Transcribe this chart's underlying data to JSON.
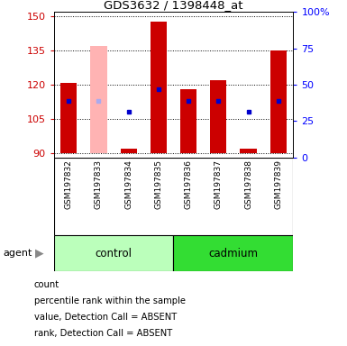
{
  "title": "GDS3632 / 1398448_at",
  "samples": [
    "GSM197832",
    "GSM197833",
    "GSM197834",
    "GSM197835",
    "GSM197836",
    "GSM197837",
    "GSM197838",
    "GSM197839"
  ],
  "bar_bottom": 90,
  "ylim": [
    88,
    152
  ],
  "ylim_right": [
    0,
    100
  ],
  "yticks_left": [
    90,
    105,
    120,
    135,
    150
  ],
  "yticks_right": [
    0,
    25,
    50,
    75,
    100
  ],
  "red_top": [
    121,
    90,
    92,
    148,
    118,
    122,
    92,
    135
  ],
  "blue_dot_y": [
    113,
    113,
    108,
    118,
    113,
    113,
    108,
    113
  ],
  "absent_samples": [
    1
  ],
  "absent_bar_top": [
    137
  ],
  "absent_blue_dot_y": [
    113
  ],
  "bar_color_present": "#cc0000",
  "bar_color_absent": "#ffb3b3",
  "blue_dot_color_present": "#0000cc",
  "blue_dot_color_absent": "#aaaaee",
  "bar_width": 0.55,
  "legend_items": [
    {
      "color": "#cc0000",
      "label": "count"
    },
    {
      "color": "#0000cc",
      "label": "percentile rank within the sample"
    },
    {
      "color": "#ffb3b3",
      "label": "value, Detection Call = ABSENT"
    },
    {
      "color": "#aaaaee",
      "label": "rank, Detection Call = ABSENT"
    }
  ]
}
